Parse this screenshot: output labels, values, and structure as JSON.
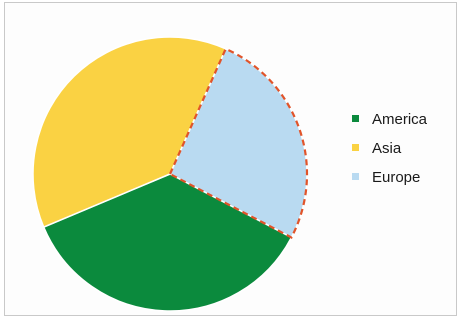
{
  "chart_data": {
    "type": "pie",
    "title": "",
    "categories": [
      "America",
      "Asia",
      "Europe"
    ],
    "values": [
      36,
      38,
      26
    ],
    "colors": [
      "#0b8a3d",
      "#fad243",
      "#b9daf1"
    ],
    "highlight_wedge": "Europe",
    "highlight_style": "dashed",
    "highlight_color": "#e1542a",
    "legend_position": "right",
    "start_slice": "Europe",
    "direction": "clockwise"
  }
}
